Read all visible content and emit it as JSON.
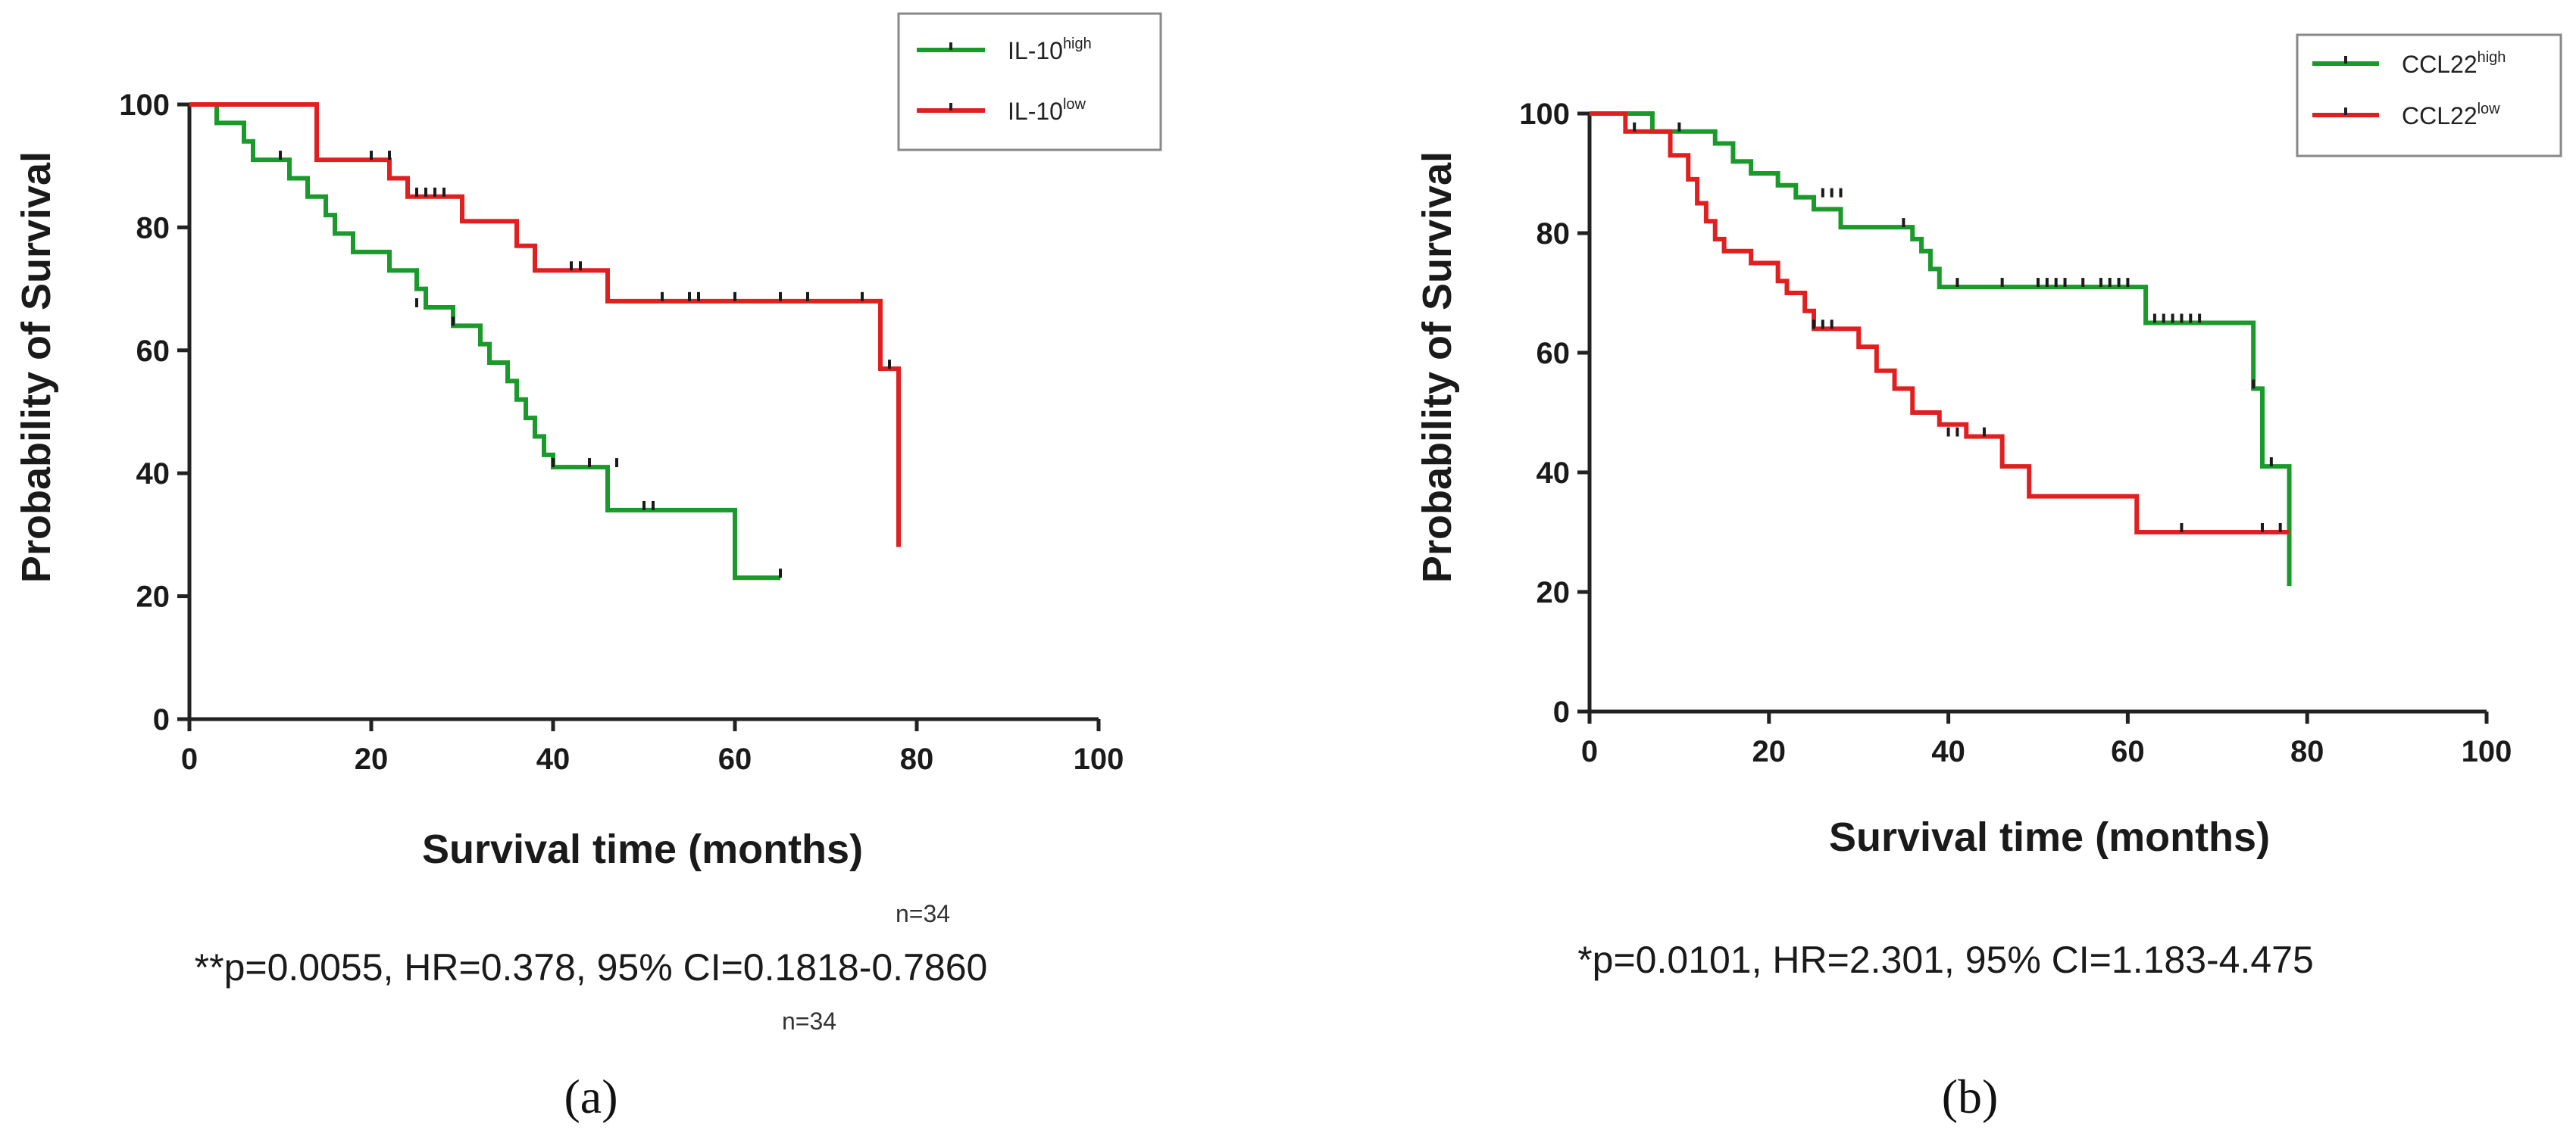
{
  "chart_data": [
    {
      "type": "line",
      "panel_label": "(a)",
      "xlabel": "Survival time (months)",
      "ylabel": "Probability of Survival",
      "xlim": [
        0,
        100
      ],
      "ylim": [
        0,
        100
      ],
      "xticks": [
        0,
        20,
        40,
        60,
        80,
        100
      ],
      "yticks": [
        0,
        20,
        40,
        60,
        80,
        100
      ],
      "legend_position": "top-right",
      "stat_text": "**p=0.0055, HR=0.378, 95% CI=0.1818-0.7860",
      "series": [
        {
          "name": "IL-10",
          "name_sup": "high",
          "color": "#1a9a2a",
          "end_label": "n=34",
          "steps": [
            [
              0,
              100
            ],
            [
              3,
              97
            ],
            [
              6,
              94
            ],
            [
              7,
              91
            ],
            [
              11,
              88
            ],
            [
              13,
              85
            ],
            [
              15,
              82
            ],
            [
              16,
              79
            ],
            [
              18,
              76
            ],
            [
              22,
              73
            ],
            [
              25,
              70
            ],
            [
              26,
              67
            ],
            [
              29,
              64
            ],
            [
              32,
              61
            ],
            [
              33,
              58
            ],
            [
              35,
              55
            ],
            [
              36,
              52
            ],
            [
              37,
              49
            ],
            [
              38,
              46
            ],
            [
              39,
              43
            ],
            [
              40,
              41
            ],
            [
              46,
              34
            ],
            [
              56,
              34
            ],
            [
              60,
              23
            ],
            [
              65,
              23
            ]
          ],
          "censored": [
            [
              10,
              91
            ],
            [
              25,
              67
            ],
            [
              29,
              64
            ],
            [
              40,
              41
            ],
            [
              44,
              41
            ],
            [
              47,
              41
            ],
            [
              50,
              34
            ],
            [
              51,
              34
            ],
            [
              65,
              23
            ]
          ]
        },
        {
          "name": "IL-10",
          "name_sup": "low",
          "color": "#e02020",
          "end_label": "n=34",
          "steps": [
            [
              0,
              100
            ],
            [
              13,
              100
            ],
            [
              14,
              91
            ],
            [
              21,
              91
            ],
            [
              22,
              88
            ],
            [
              24,
              85
            ],
            [
              30,
              81
            ],
            [
              36,
              77
            ],
            [
              38,
              73
            ],
            [
              46,
              68
            ],
            [
              75,
              68
            ],
            [
              76,
              57
            ],
            [
              78,
              57
            ],
            [
              78,
              28
            ]
          ],
          "censored": [
            [
              20,
              91
            ],
            [
              22,
              91
            ],
            [
              25,
              85
            ],
            [
              26,
              85
            ],
            [
              27,
              85
            ],
            [
              28,
              85
            ],
            [
              42,
              73
            ],
            [
              43,
              73
            ],
            [
              52,
              68
            ],
            [
              55,
              68
            ],
            [
              56,
              68
            ],
            [
              60,
              68
            ],
            [
              65,
              68
            ],
            [
              68,
              68
            ],
            [
              74,
              68
            ],
            [
              77,
              57
            ]
          ]
        }
      ]
    },
    {
      "type": "line",
      "panel_label": "(b)",
      "xlabel": "Survival time (months)",
      "ylabel": "Probability of Survival",
      "xlim": [
        0,
        100
      ],
      "ylim": [
        0,
        100
      ],
      "xticks": [
        0,
        20,
        40,
        60,
        80,
        100
      ],
      "yticks": [
        0,
        20,
        40,
        60,
        80,
        100
      ],
      "legend_position": "top-right",
      "stat_text": "*p=0.0101, HR=2.301, 95% CI=1.183-4.475",
      "series": [
        {
          "name": "CCL22",
          "name_sup": "high",
          "color": "#1a9a2a",
          "steps": [
            [
              0,
              100
            ],
            [
              6,
              100
            ],
            [
              7,
              97
            ],
            [
              13,
              97
            ],
            [
              14,
              95
            ],
            [
              16,
              92
            ],
            [
              18,
              90
            ],
            [
              21,
              88
            ],
            [
              23,
              86
            ],
            [
              25,
              84
            ],
            [
              28,
              81
            ],
            [
              35,
              81
            ],
            [
              36,
              79
            ],
            [
              37,
              77
            ],
            [
              38,
              74
            ],
            [
              39,
              71
            ],
            [
              61,
              71
            ],
            [
              62,
              65
            ],
            [
              73,
              65
            ],
            [
              74,
              54
            ],
            [
              75,
              41
            ],
            [
              77,
              41
            ],
            [
              78,
              21
            ]
          ],
          "censored": [
            [
              10,
              97
            ],
            [
              26,
              86
            ],
            [
              27,
              86
            ],
            [
              28,
              86
            ],
            [
              35,
              81
            ],
            [
              41,
              71
            ],
            [
              46,
              71
            ],
            [
              50,
              71
            ],
            [
              51,
              71
            ],
            [
              52,
              71
            ],
            [
              53,
              71
            ],
            [
              55,
              71
            ],
            [
              57,
              71
            ],
            [
              58,
              71
            ],
            [
              59,
              71
            ],
            [
              60,
              71
            ],
            [
              63,
              65
            ],
            [
              64,
              65
            ],
            [
              65,
              65
            ],
            [
              66,
              65
            ],
            [
              67,
              65
            ],
            [
              68,
              65
            ],
            [
              74,
              54
            ],
            [
              76,
              41
            ]
          ]
        },
        {
          "name": "CCL22",
          "name_sup": "low",
          "color": "#e02020",
          "steps": [
            [
              0,
              100
            ],
            [
              3,
              100
            ],
            [
              4,
              97
            ],
            [
              8,
              97
            ],
            [
              9,
              93
            ],
            [
              11,
              89
            ],
            [
              12,
              85
            ],
            [
              13,
              82
            ],
            [
              14,
              79
            ],
            [
              15,
              77
            ],
            [
              18,
              75
            ],
            [
              21,
              72
            ],
            [
              22,
              70
            ],
            [
              24,
              67
            ],
            [
              25,
              64
            ],
            [
              28,
              64
            ],
            [
              30,
              61
            ],
            [
              32,
              57
            ],
            [
              34,
              54
            ],
            [
              36,
              50
            ],
            [
              39,
              48
            ],
            [
              42,
              46
            ],
            [
              46,
              41
            ],
            [
              49,
              36
            ],
            [
              60,
              36
            ],
            [
              61,
              30
            ],
            [
              78,
              30
            ]
          ],
          "censored": [
            [
              5,
              97
            ],
            [
              25,
              64
            ],
            [
              26,
              64
            ],
            [
              27,
              64
            ],
            [
              40,
              46
            ],
            [
              41,
              46
            ],
            [
              44,
              46
            ],
            [
              66,
              30
            ],
            [
              75,
              30
            ],
            [
              77,
              30
            ]
          ]
        }
      ]
    }
  ]
}
